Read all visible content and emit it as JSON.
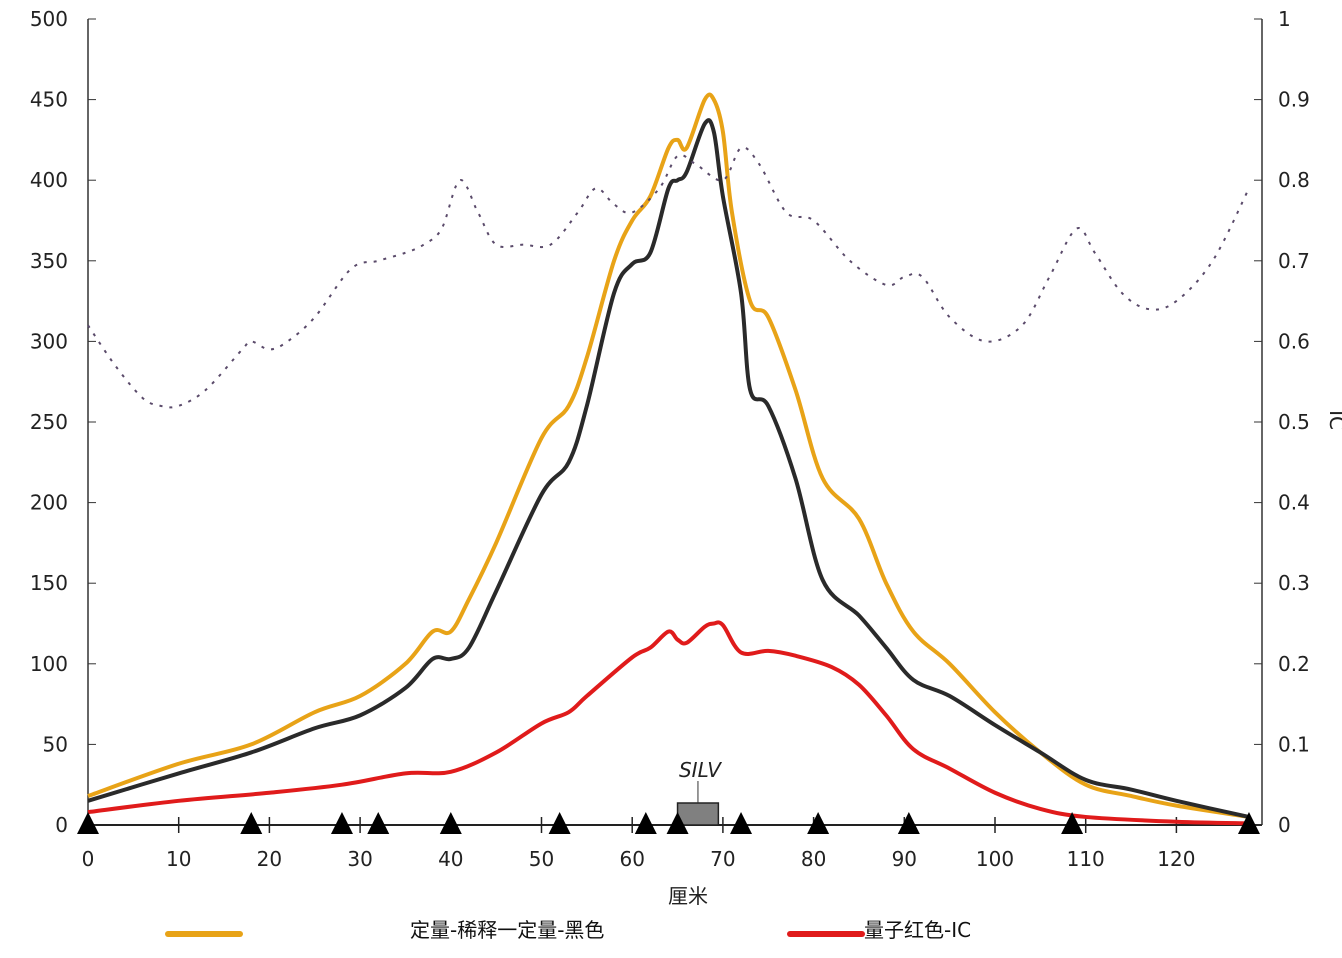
{
  "chart_data": {
    "type": "line",
    "xlabel": "厘米",
    "ylabel_right": "IC",
    "xlim": [
      0,
      130
    ],
    "ylim": [
      0,
      500
    ],
    "ylim_right": [
      0,
      1
    ],
    "x_ticks": [
      0,
      10,
      20,
      30,
      40,
      50,
      60,
      70,
      80,
      90,
      100,
      110,
      120
    ],
    "y_ticks": [
      0,
      50,
      100,
      150,
      200,
      250,
      300,
      350,
      400,
      450,
      500
    ],
    "y_ticks_right": [
      "0",
      "0.1",
      "0.2",
      "0.3",
      "0.4",
      "0.5",
      "0.6",
      "0.7",
      "0.8",
      "0.9",
      "1"
    ],
    "grid": false,
    "legend": {
      "position": "bottom",
      "labels": [
        "定量-稀释一定量-黑色",
        "量子红色-IC"
      ]
    },
    "series": [
      {
        "key": "orange",
        "color": "#E8A317",
        "axis": "left",
        "x": [
          0,
          10,
          18,
          25,
          30,
          35,
          38,
          40,
          42,
          45,
          50,
          53,
          55,
          58,
          60,
          62,
          64,
          65,
          66,
          68,
          69,
          70,
          71,
          73,
          75,
          78,
          81,
          85,
          88,
          91,
          95,
          100,
          105,
          110,
          115,
          120,
          128
        ],
        "y": [
          18,
          38,
          50,
          70,
          80,
          100,
          120,
          120,
          140,
          175,
          240,
          260,
          290,
          350,
          375,
          390,
          420,
          425,
          420,
          450,
          450,
          430,
          380,
          325,
          315,
          270,
          215,
          190,
          150,
          120,
          100,
          70,
          45,
          25,
          18,
          12,
          5
        ]
      },
      {
        "key": "black",
        "color": "#2a2a2a",
        "axis": "left",
        "x": [
          0,
          10,
          18,
          25,
          30,
          35,
          38,
          40,
          42,
          45,
          50,
          53,
          55,
          58,
          60,
          62,
          64,
          65,
          66,
          68,
          69,
          70,
          72,
          73,
          75,
          78,
          81,
          85,
          88,
          91,
          95,
          100,
          105,
          110,
          115,
          120,
          128
        ],
        "y": [
          15,
          32,
          45,
          60,
          68,
          85,
          103,
          103,
          110,
          145,
          205,
          225,
          260,
          330,
          348,
          355,
          395,
          400,
          405,
          435,
          430,
          390,
          330,
          270,
          260,
          215,
          152,
          130,
          110,
          90,
          80,
          62,
          45,
          28,
          22,
          15,
          5
        ]
      },
      {
        "key": "red",
        "color": "#E01B1B",
        "axis": "left",
        "x": [
          0,
          10,
          20,
          28,
          35,
          40,
          45,
          50,
          53,
          55,
          60,
          62,
          64,
          65,
          66,
          68,
          69,
          70,
          72,
          75,
          78,
          82,
          85,
          88,
          91,
          95,
          100,
          105,
          110,
          120,
          128
        ],
        "y": [
          8,
          15,
          20,
          25,
          32,
          33,
          45,
          63,
          70,
          80,
          104,
          110,
          120,
          115,
          113,
          123,
          125,
          124,
          107,
          108,
          105,
          98,
          87,
          68,
          47,
          35,
          20,
          10,
          5,
          2,
          1
        ]
      },
      {
        "key": "ic",
        "color": "#5a4a6a",
        "axis": "right",
        "dashed": true,
        "x": [
          0,
          3,
          6,
          8,
          10,
          13,
          17,
          18,
          20,
          22,
          25,
          29,
          32,
          35,
          37,
          39,
          41,
          43,
          45,
          48,
          51,
          54,
          56,
          58,
          60,
          63,
          65,
          67,
          70,
          72,
          74,
          77,
          80,
          84,
          88,
          90,
          92,
          95,
          99,
          103,
          106,
          109,
          111,
          114,
          117,
          120,
          124,
          128
        ],
        "y": [
          0.62,
          0.57,
          0.53,
          0.52,
          0.52,
          0.54,
          0.59,
          0.6,
          0.59,
          0.6,
          0.63,
          0.69,
          0.7,
          0.71,
          0.72,
          0.74,
          0.8,
          0.76,
          0.72,
          0.72,
          0.72,
          0.76,
          0.79,
          0.77,
          0.76,
          0.79,
          0.83,
          0.82,
          0.8,
          0.84,
          0.82,
          0.76,
          0.75,
          0.7,
          0.67,
          0.68,
          0.68,
          0.63,
          0.6,
          0.62,
          0.68,
          0.74,
          0.71,
          0.66,
          0.64,
          0.65,
          0.7,
          0.79
        ]
      }
    ],
    "markers": {
      "shape": "triangle",
      "x": [
        0,
        18,
        28,
        32,
        40,
        52,
        61.5,
        65,
        72,
        80.5,
        90.5,
        108.5,
        128
      ]
    },
    "annotation": {
      "label": "SILV",
      "x_range": [
        65,
        69.5
      ]
    }
  }
}
